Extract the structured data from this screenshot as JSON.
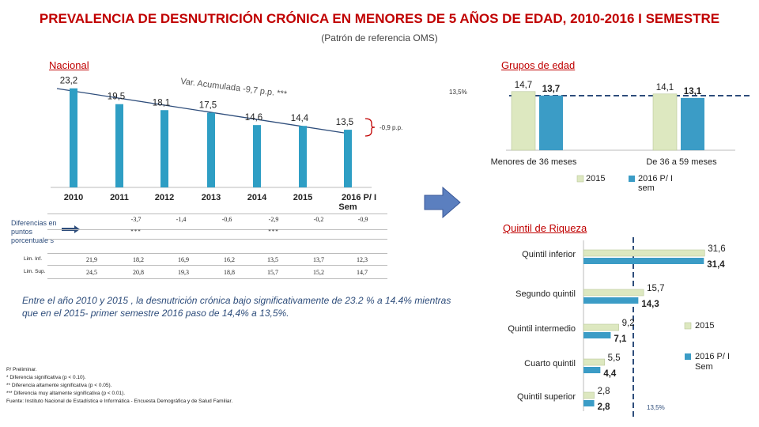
{
  "header": {
    "title": "PREVALENCIA DE  DESNUTRICIÓN CRÓNICA EN MENORES DE 5 AÑOS DE EDAD, 2010-2016  I SEMESTRE",
    "subtitle": "(Patrón de referencia OMS)"
  },
  "sections": {
    "nacional": "Nacional",
    "grupos": "Grupos de edad",
    "quintil": "Quintil de Riqueza"
  },
  "annotations": {
    "acumulada": "Var. Acumulada -9,7 p.p. ***",
    "reference_top": "13,5%",
    "reference_bottom": "13,5%",
    "change": "-0,9 p.p."
  },
  "table": {
    "label": "Diferencias en puntos porcentuale s",
    "diffs": [
      "-3,7",
      "-1,4",
      "-0,6",
      "-2,9",
      "-0,2",
      "-0,9"
    ],
    "stars": [
      "***",
      "",
      "",
      "***",
      "",
      ""
    ],
    "lim_inf_label": "Lim. Inf.",
    "lim_inf": [
      "21,9",
      "18,2",
      "16,9",
      "16,2",
      "13,5",
      "13,7",
      "12,3"
    ],
    "lim_sup_label": "Lim. Sup.",
    "lim_sup": [
      "24,5",
      "20,8",
      "19,3",
      "18,8",
      "15,7",
      "15,2",
      "14,7"
    ]
  },
  "note": "Entre el año 2010 y 2015 , la desnutrición crónica bajo significativamente de 23.2 % a 14.4% mientras que en el 2015- primer semestre 2016 paso de 14,4% a 13,5%.",
  "footnotes": [
    "P/ Preliminar.",
    "*    Diferencia significativa (p < 0.10).",
    "**  Diferencia altamente significativa (p < 0.05).",
    "*** Diferencia muy altamente significativa (p < 0.01).",
    "Fuente: Instituto Nacional de Estadística e Informática - Encuesta Demográfica y de Salud Familiar."
  ],
  "colors": {
    "title": "#c00000",
    "national_bar": "#2e9ec4",
    "series_2015": "#dde8c0",
    "series_2016": "#3b9cc6",
    "reference_line": "#2e4d7b",
    "arrow": "#5b7fbf"
  },
  "chart_data": [
    {
      "type": "bar",
      "categories": [
        "2010",
        "2011",
        "2012",
        "2013",
        "2014",
        "2015",
        "2016  P/ I Sem"
      ],
      "values": [
        23.2,
        19.5,
        18.1,
        17.5,
        14.6,
        14.4,
        13.5
      ],
      "value_labels": [
        "23,2",
        "19,5",
        "18,1",
        "17,5",
        "14,6",
        "14,4",
        "13,5"
      ]
    },
    {
      "type": "bar",
      "categories": [
        "Menores de 36 meses",
        "De 36 a 59 meses"
      ],
      "series": [
        {
          "name": "2015",
          "values": [
            14.7,
            14.1
          ],
          "labels": [
            "14,7",
            "14,1"
          ]
        },
        {
          "name": "2016  P/ I sem",
          "values": [
            13.7,
            13.1
          ],
          "labels": [
            "13,7",
            "13,1"
          ]
        }
      ]
    },
    {
      "type": "bar",
      "orientation": "horizontal",
      "categories": [
        "Quintil inferior",
        "Segundo quintil",
        "Quintil intermedio",
        "Cuarto quintil",
        "Quintil superior"
      ],
      "series": [
        {
          "name": "2015",
          "values": [
            31.6,
            15.7,
            9.2,
            5.5,
            2.8
          ],
          "labels": [
            "31,6",
            "15,7",
            "9,2",
            "5,5",
            "2,8"
          ]
        },
        {
          "name": "2016  P/ I Sem",
          "values": [
            31.4,
            14.3,
            7.1,
            4.4,
            2.8
          ],
          "labels": [
            "31,4",
            "14,3",
            "7,1",
            "4,4",
            "2,8"
          ]
        }
      ]
    }
  ]
}
